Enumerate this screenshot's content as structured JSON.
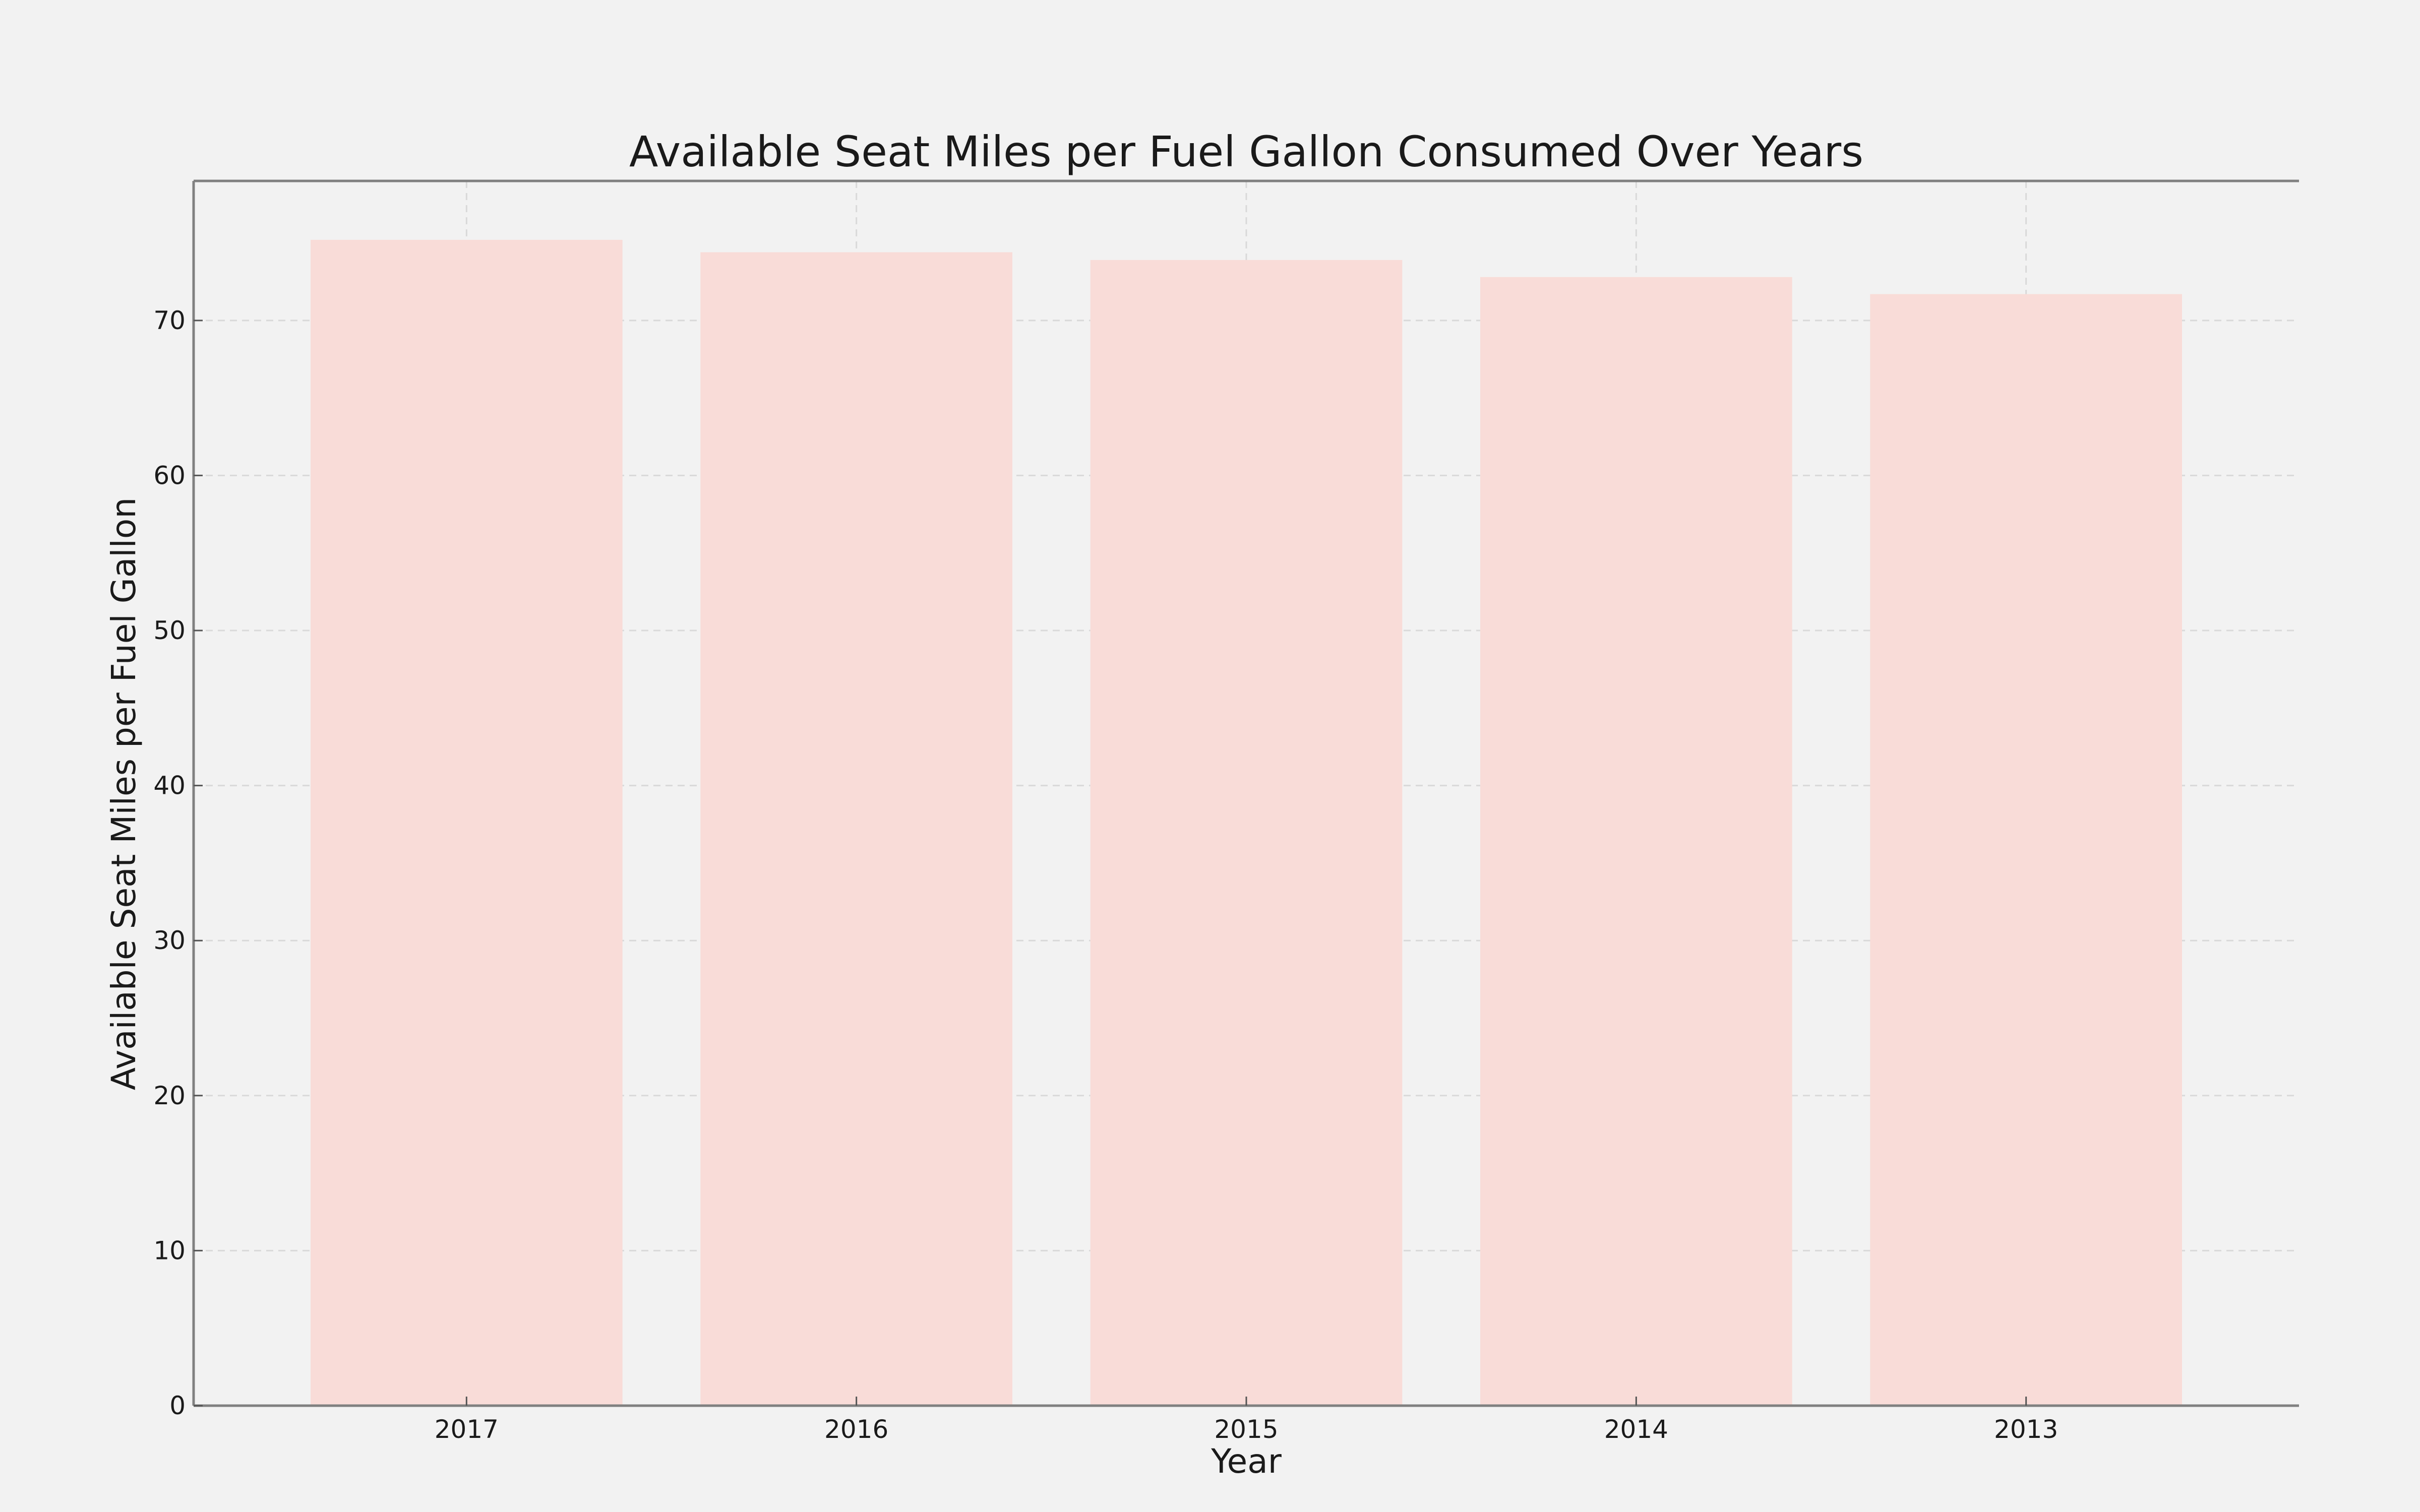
{
  "chart_data": {
    "type": "bar",
    "title": "Available Seat Miles per Fuel Gallon Consumed Over Years",
    "xlabel": "Year",
    "ylabel": "Available Seat Miles per Fuel Gallon",
    "categories": [
      "2017",
      "2016",
      "2015",
      "2014",
      "2013"
    ],
    "values": [
      75.2,
      74.4,
      73.9,
      72.8,
      71.7
    ],
    "ylim": [
      0,
      79
    ],
    "yticks": [
      0,
      10,
      20,
      30,
      40,
      50,
      60,
      70
    ],
    "grid": true,
    "legend": "none",
    "colors": {
      "bar": "#f9dcd8",
      "background": "#f2f2f2",
      "spine": "#808080",
      "grid": "#d9d9d9"
    }
  }
}
